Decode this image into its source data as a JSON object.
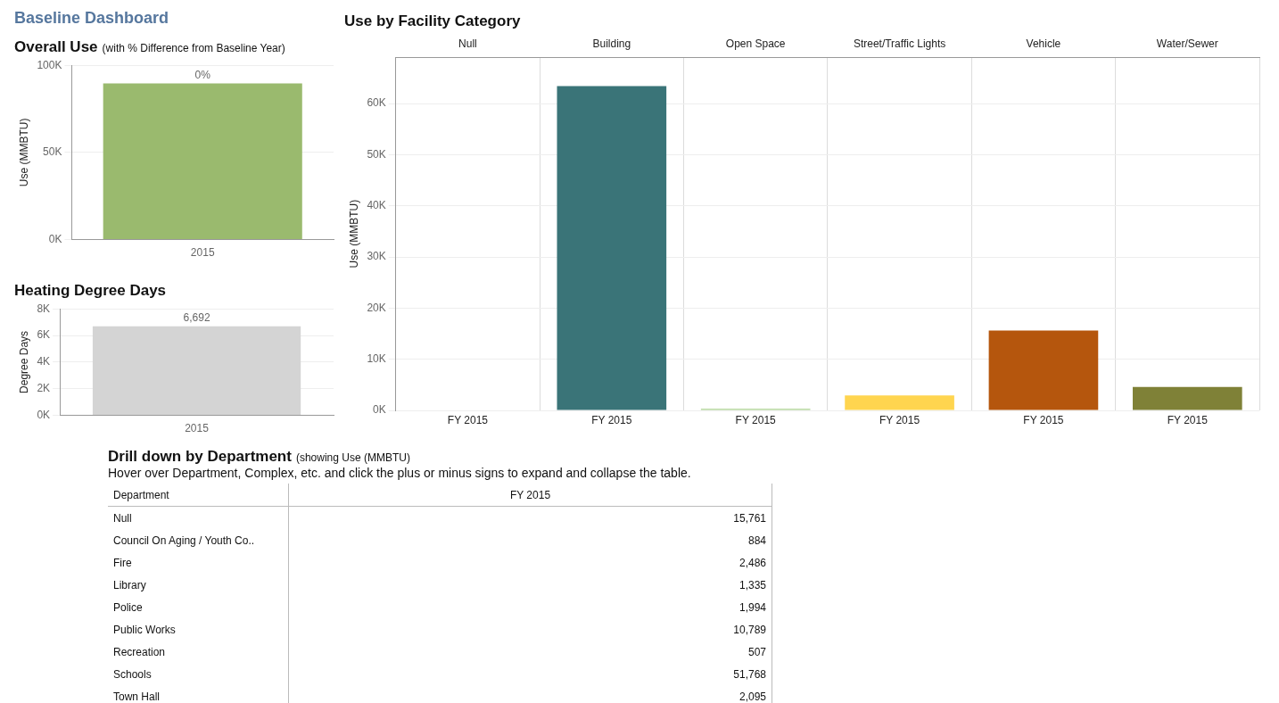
{
  "chart_data": [
    {
      "type": "bar",
      "annotations": [
        "Baseline Dashboard",
        {
          "text": "0%",
          "x": "2015",
          "y": 89600
        }
      ],
      "title": "Overall Use",
      "subtitle": "(with % Difference from Baseline Year)",
      "categories": [
        "2015"
      ],
      "values": [
        89600
      ],
      "color": "#9aba6e",
      "ylabel": "Use (MMBTU)",
      "ylim": [
        0,
        100000
      ],
      "yticks": [
        {
          "value": 0,
          "label": "0K"
        },
        {
          "value": 50000,
          "label": "50K"
        },
        {
          "value": 100000,
          "label": "100K"
        }
      ],
      "grid": "y"
    },
    {
      "type": "bar",
      "title": "Heating Degree Days",
      "categories": [
        "2015"
      ],
      "values": [
        6692
      ],
      "color": "#d4d4d4",
      "value_labels": [
        "6,692"
      ],
      "ylabel": "Degree Days",
      "ylim": [
        0,
        8000
      ],
      "yticks": [
        {
          "value": 0,
          "label": "0K"
        },
        {
          "value": 2000,
          "label": "2K"
        },
        {
          "value": 4000,
          "label": "4K"
        },
        {
          "value": 6000,
          "label": "6K"
        },
        {
          "value": 8000,
          "label": "8K"
        }
      ],
      "grid": "y"
    },
    {
      "type": "bar",
      "title": "Use by Facility Category",
      "categories": [
        "Null",
        "Building",
        "Open Space",
        "Street/Traffic Lights",
        "Vehicle",
        "Water/Sewer"
      ],
      "values": [
        null,
        63400,
        300,
        2900,
        15600,
        4600
      ],
      "colors": [
        "#9aba6e",
        "#3a7478",
        "#a9d18e",
        "#ffd54f",
        "#b5560d",
        "#7f8137"
      ],
      "xlabel": "FY 2015",
      "ylabel": "Use (MMBTU)",
      "ylim": [
        0,
        69000
      ],
      "yticks": [
        {
          "value": 0,
          "label": "0K"
        },
        {
          "value": 10000,
          "label": "10K"
        },
        {
          "value": 20000,
          "label": "20K"
        },
        {
          "value": 30000,
          "label": "30K"
        },
        {
          "value": 40000,
          "label": "40K"
        },
        {
          "value": 50000,
          "label": "50K"
        },
        {
          "value": 60000,
          "label": "60K"
        }
      ],
      "grid": true
    },
    {
      "type": "other",
      "title": "Drill down by Department",
      "subtitle": "(showing Use (MMBTU)",
      "annotations": [
        "Hover over Department, Complex, etc. and click the plus or minus signs to expand and collapse the table."
      ],
      "xlabel": "Department",
      "ylabel": "FY 2015",
      "categories": [
        "Null",
        "Council On Aging / Youth Co..",
        "Fire",
        "Library",
        "Police",
        "Public Works",
        "Recreation",
        "Schools",
        "Town Hall"
      ],
      "values": [
        15761,
        884,
        2486,
        1335,
        1994,
        10789,
        507,
        51768,
        2095
      ],
      "value_labels": [
        "15,761",
        "884",
        "2,486",
        "1,335",
        "1,994",
        "10,789",
        "507",
        "51,768",
        "2,095"
      ]
    }
  ]
}
